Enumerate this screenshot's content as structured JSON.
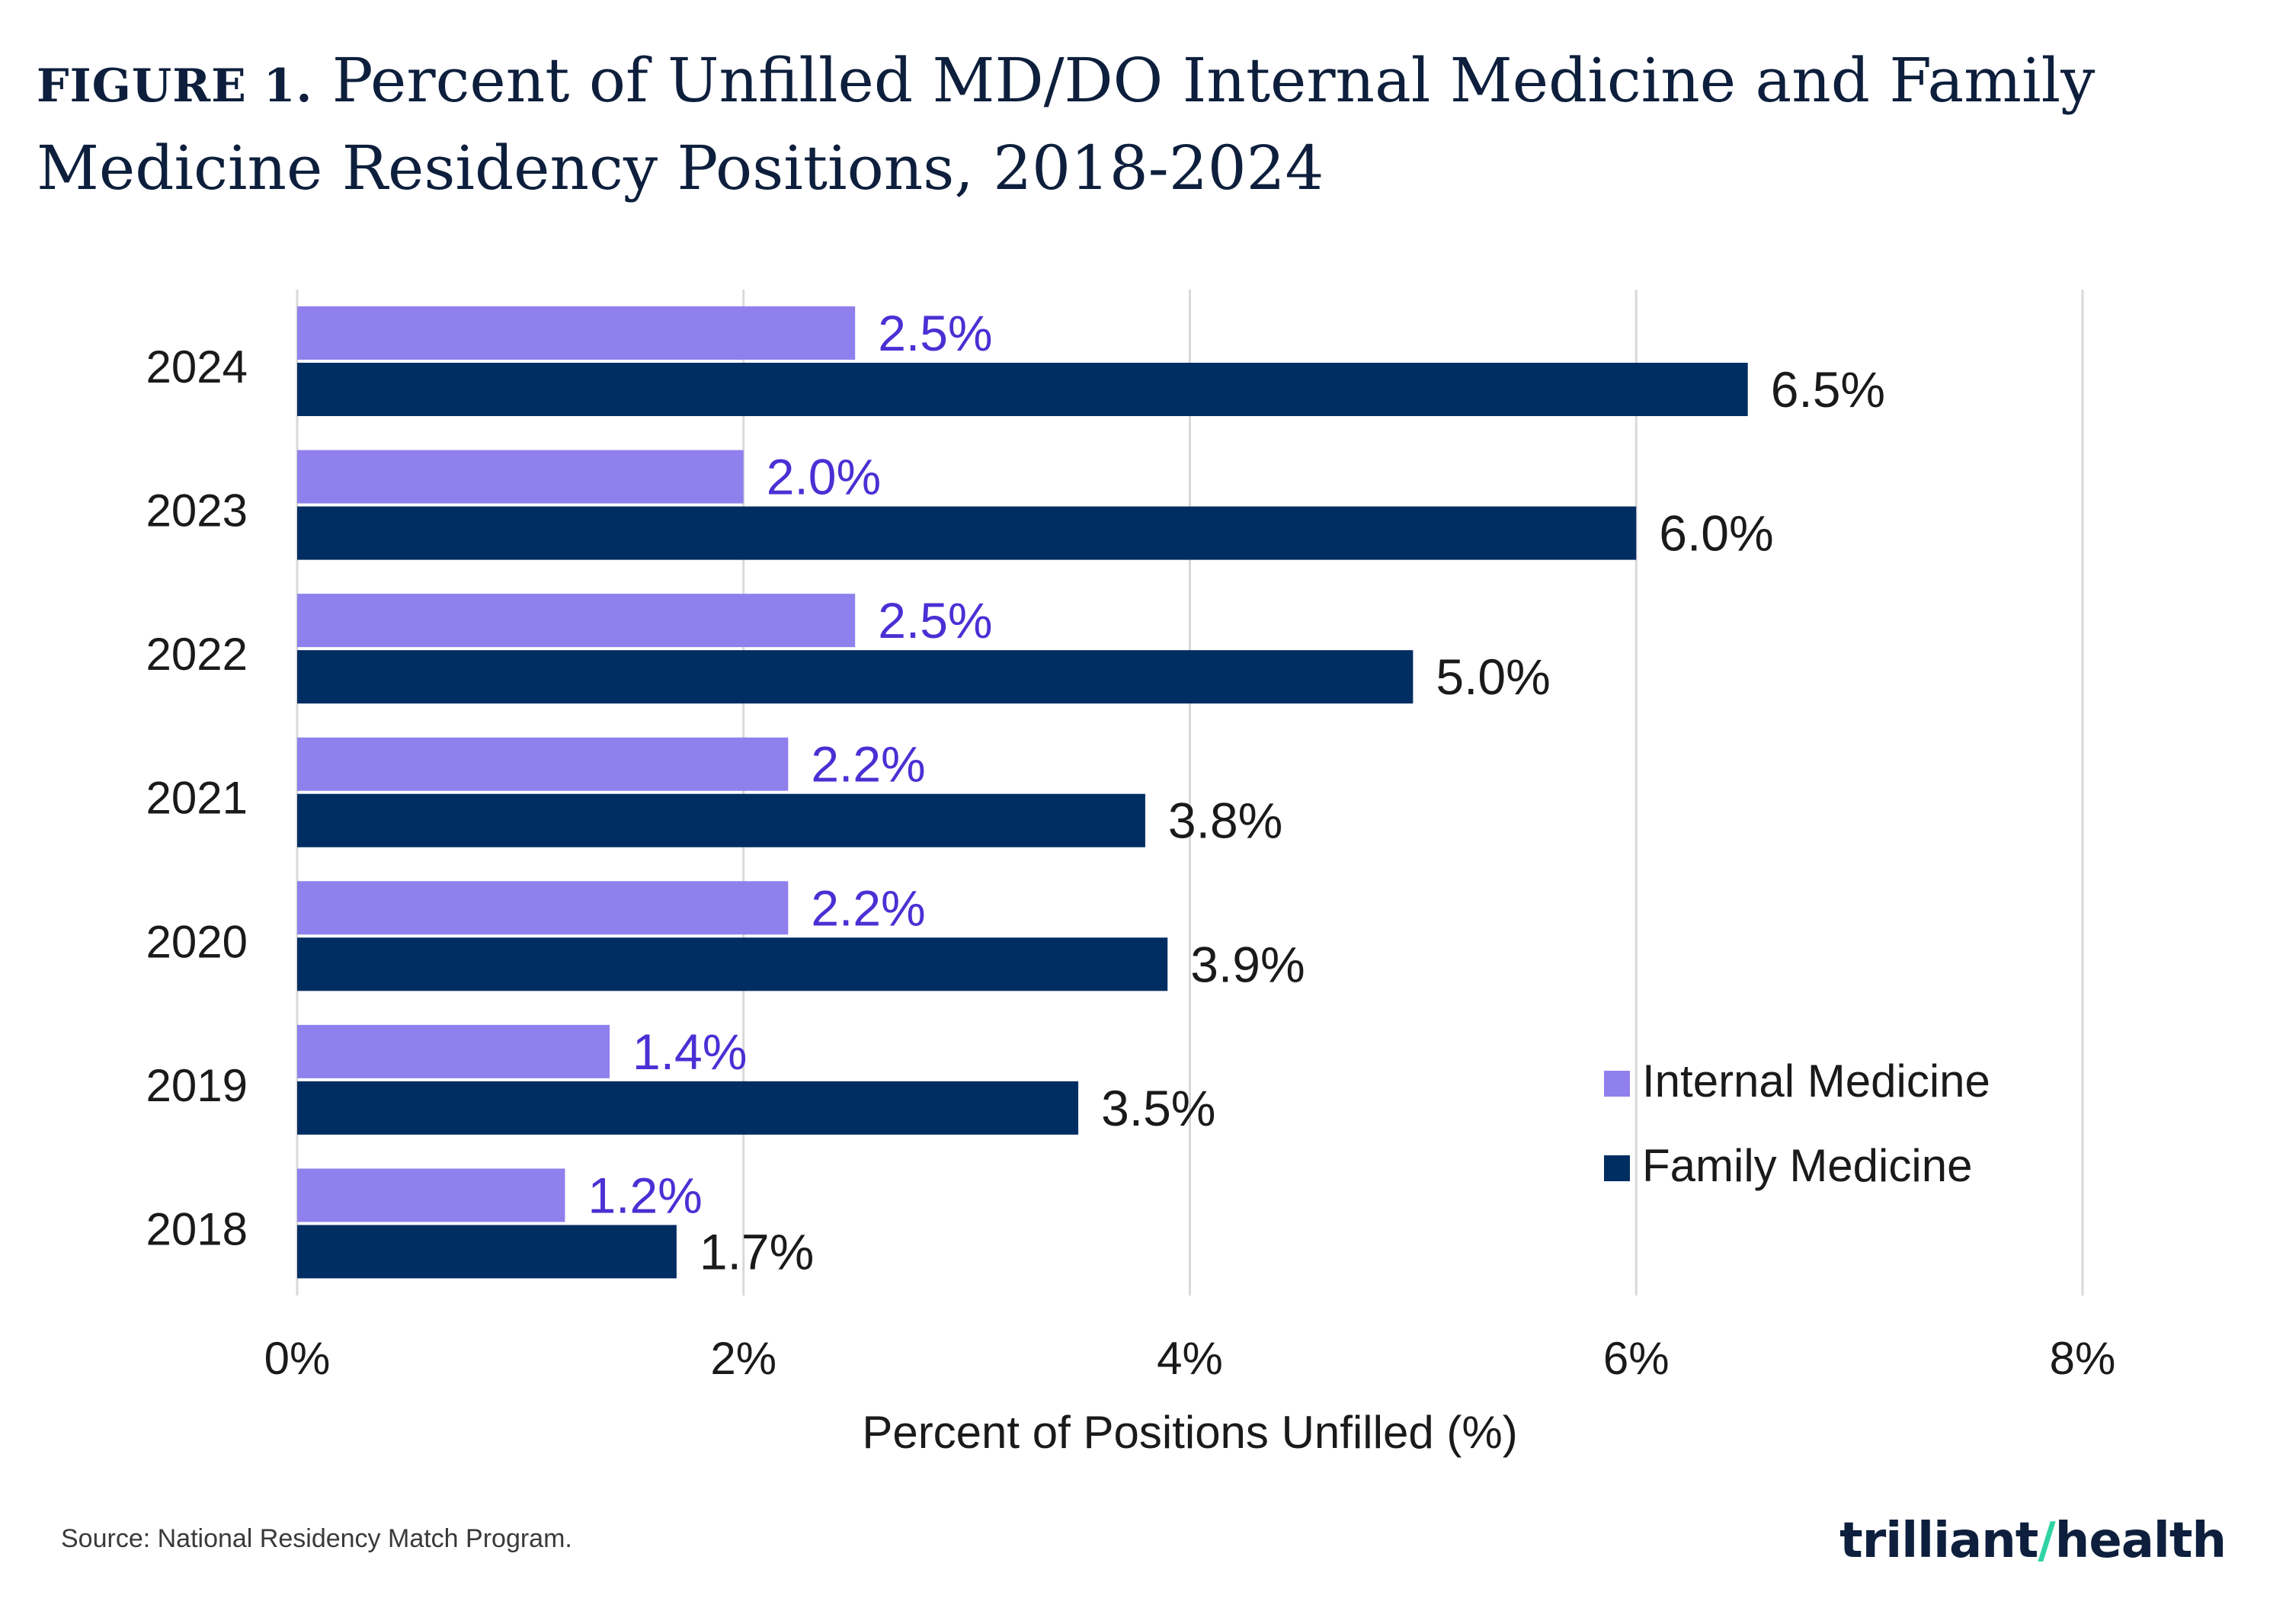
{
  "figure_label": "FIGURE 1.",
  "title": "Percent of Unfilled MD/DO Internal Medicine and Family Medicine Residency Positions, 2018-2024",
  "source": "Source: National Residency Match Program.",
  "logo_text": "trilliant health",
  "colors": {
    "internal_medicine": "#8f80ee",
    "family_medicine": "#002d62",
    "internal_label": "#4a30d4",
    "family_label": "#1a1a1a",
    "grid": "#d9d9d9"
  },
  "chart_data": {
    "type": "bar",
    "orientation": "horizontal",
    "categories": [
      "2024",
      "2023",
      "2022",
      "2021",
      "2020",
      "2019",
      "2018"
    ],
    "series": [
      {
        "name": "Internal Medicine",
        "values": [
          2.5,
          2.0,
          2.5,
          2.2,
          2.2,
          1.4,
          1.2
        ],
        "labels": [
          "2.5%",
          "2.0%",
          "2.5%",
          "2.2%",
          "2.2%",
          "1.4%",
          "1.2%"
        ]
      },
      {
        "name": "Family Medicine",
        "values": [
          6.5,
          6.0,
          5.0,
          3.8,
          3.9,
          3.5,
          1.7
        ],
        "labels": [
          "6.5%",
          "6.0%",
          "5.0%",
          "3.8%",
          "3.9%",
          "3.5%",
          "1.7%"
        ]
      }
    ],
    "xlabel": "Percent of Positions Unfilled (%)",
    "xlim": [
      0,
      8
    ],
    "xticks": [
      0,
      2,
      4,
      6,
      8
    ],
    "xtick_labels": [
      "0%",
      "2%",
      "4%",
      "6%",
      "8%"
    ],
    "grid": true,
    "legend_position": "bottom-right"
  }
}
